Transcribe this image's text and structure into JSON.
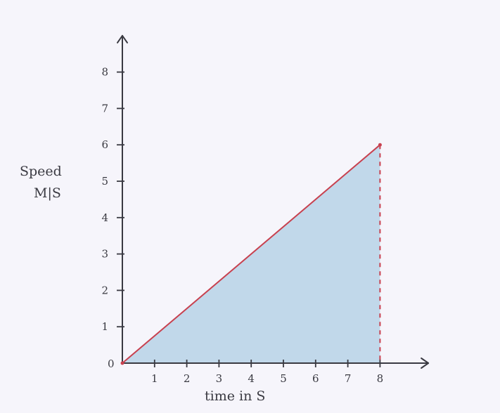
{
  "chart_data": {
    "type": "area",
    "title": "",
    "xlabel": "time in S",
    "ylabel_line1": "Speed",
    "ylabel_line2": "M|S",
    "origin_label": "0",
    "x_ticks": [
      {
        "value": 1,
        "label": "1"
      },
      {
        "value": 2,
        "label": "2"
      },
      {
        "value": 3,
        "label": "3"
      },
      {
        "value": 4,
        "label": "4"
      },
      {
        "value": 5,
        "label": "5"
      },
      {
        "value": 6,
        "label": "6"
      },
      {
        "value": 7,
        "label": "7"
      },
      {
        "value": 8,
        "label": "8"
      }
    ],
    "y_ticks": [
      {
        "value": 1,
        "label": "1"
      },
      {
        "value": 2,
        "label": "2"
      },
      {
        "value": 3,
        "label": "3"
      },
      {
        "value": 4,
        "label": "4"
      },
      {
        "value": 5,
        "label": "5"
      },
      {
        "value": 6,
        "label": "6"
      },
      {
        "value": 7,
        "label": "7"
      },
      {
        "value": 8,
        "label": "8"
      }
    ],
    "xlim": [
      0,
      9.5
    ],
    "ylim": [
      0,
      9
    ],
    "series": [
      {
        "x": [
          0,
          8
        ],
        "y": [
          0,
          6
        ]
      }
    ],
    "drop_line": {
      "x": 8,
      "from_y": 6,
      "to_y": 0
    },
    "grid": false,
    "colors": {
      "line": "#c8414f",
      "fill": "#b7d2e6",
      "axis": "#3a3a42",
      "drop_line": "#c8414f"
    }
  }
}
